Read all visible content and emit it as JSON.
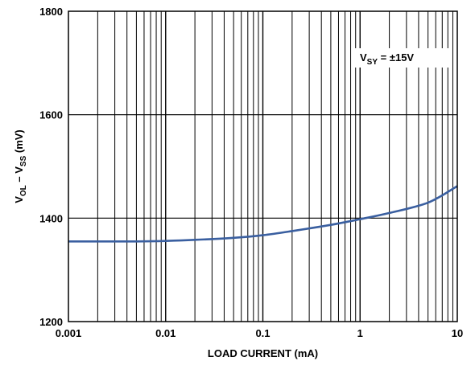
{
  "chart_data": {
    "type": "line",
    "xscale": "log",
    "xlim": [
      0.001,
      10
    ],
    "ylim": [
      1200,
      1800
    ],
    "xticks": [
      0.001,
      0.01,
      0.1,
      1,
      10
    ],
    "xtick_labels": [
      "0.001",
      "0.01",
      "0.1",
      "1",
      "10"
    ],
    "yticks": [
      1200,
      1400,
      1600,
      1800
    ],
    "ytick_labels": [
      "1200",
      "1400",
      "1600",
      "1800"
    ],
    "xlabel": "LOAD CURRENT (mA)",
    "ylabel": {
      "main": "V",
      "sub1": "OL",
      "mid": " – V",
      "sub2": "SS",
      "unit": " (mV)"
    },
    "annotation": {
      "main": "V",
      "sub": "SY",
      "rest": " = ±15V"
    },
    "grid": true,
    "line_color": "#3a5fa0",
    "series": [
      {
        "x": [
          0.001,
          0.002,
          0.005,
          0.01,
          0.02,
          0.05,
          0.1,
          0.2,
          0.5,
          1,
          2,
          5,
          10
        ],
        "y": [
          1355,
          1355,
          1355,
          1356,
          1358,
          1362,
          1367,
          1375,
          1387,
          1398,
          1410,
          1430,
          1462
        ]
      }
    ]
  }
}
